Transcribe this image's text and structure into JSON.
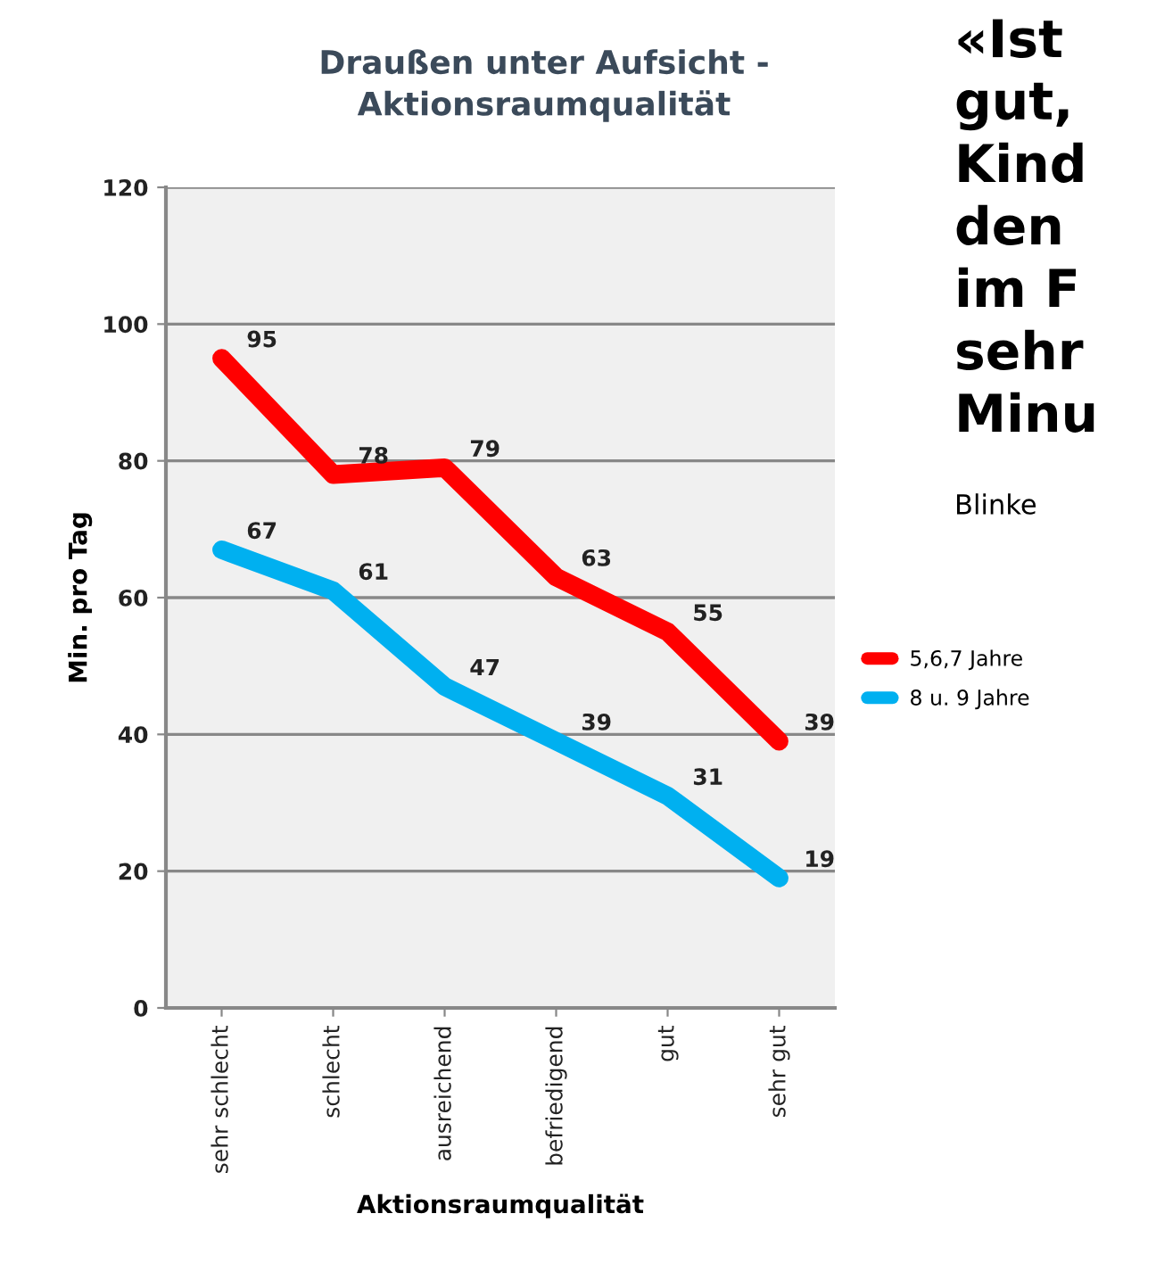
{
  "chart_data": {
    "type": "line",
    "title": "Draußen unter Aufsicht -\nAktionsraumqualität",
    "xlabel": "Aktionsraumqualität",
    "ylabel": "Min. pro Tag",
    "categories": [
      "sehr schlecht",
      "schlecht",
      "ausreichend",
      "befriedigend",
      "gut",
      "sehr gut"
    ],
    "series": [
      {
        "name": "5,6,7 Jahre",
        "color": "#ff0000",
        "values": [
          95,
          78,
          79,
          63,
          55,
          39
        ]
      },
      {
        "name": "8 u. 9 Jahre",
        "color": "#00b0f0",
        "values": [
          67,
          61,
          47,
          39,
          31,
          19
        ]
      }
    ],
    "ylim": [
      0,
      120
    ],
    "yticks": [
      0,
      20,
      40,
      60,
      80,
      100,
      120
    ],
    "grid": "y",
    "legend": "right",
    "data_labels": true,
    "marker": "none",
    "line_style": "solid",
    "annotations": [
      "«Ist",
      "gut,",
      "Kind",
      "den",
      "im F",
      "sehr",
      "Minu",
      "Blinke"
    ]
  }
}
